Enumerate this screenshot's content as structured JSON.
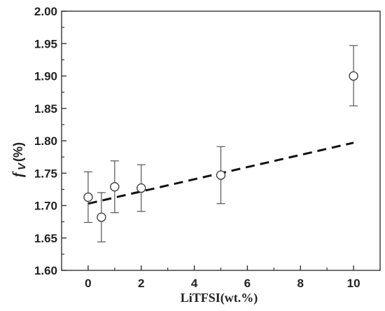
{
  "chart_data": {
    "type": "scatter",
    "xlabel": "LiTFSI(wt.%)",
    "ylabel": {
      "symbol": "f",
      "subscript": "V",
      "unit": "(%)"
    },
    "xlim": [
      -1,
      11
    ],
    "ylim": [
      1.6,
      2.0
    ],
    "xticks": [
      0,
      2,
      4,
      6,
      8,
      10
    ],
    "yticks": [
      1.6,
      1.65,
      1.7,
      1.75,
      1.8,
      1.85,
      1.9,
      1.95,
      2.0
    ],
    "grid": false,
    "points": [
      {
        "x": 0,
        "y": 1.713,
        "err_low": 1.674,
        "err_high": 1.752
      },
      {
        "x": 0.5,
        "y": 1.682,
        "err_low": 1.644,
        "err_high": 1.72
      },
      {
        "x": 1,
        "y": 1.729,
        "err_low": 1.689,
        "err_high": 1.769
      },
      {
        "x": 2,
        "y": 1.727,
        "err_low": 1.691,
        "err_high": 1.763
      },
      {
        "x": 5,
        "y": 1.747,
        "err_low": 1.703,
        "err_high": 1.791
      },
      {
        "x": 10,
        "y": 1.9,
        "err_low": 1.854,
        "err_high": 1.947
      }
    ],
    "fit_line": {
      "style": "dashed",
      "x": [
        0,
        10
      ],
      "y": [
        1.703,
        1.797
      ]
    }
  }
}
